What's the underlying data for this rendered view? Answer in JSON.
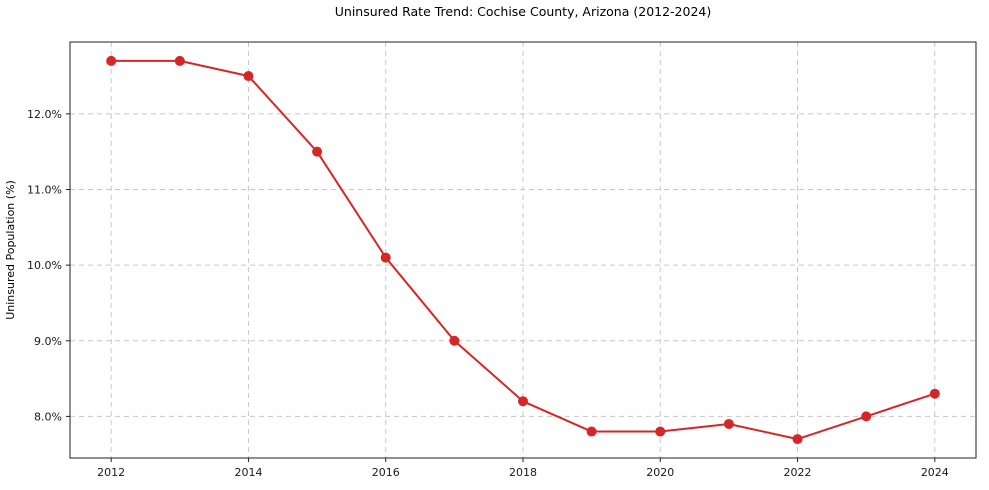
{
  "chart_data": {
    "type": "line",
    "title": "Uninsured Rate Trend: Cochise County, Arizona (2012-2024)",
    "xlabel": "",
    "ylabel": "Uninsured Population (%)",
    "x": [
      2012,
      2013,
      2014,
      2015,
      2016,
      2017,
      2018,
      2019,
      2020,
      2021,
      2022,
      2023,
      2024
    ],
    "y": [
      12.7,
      12.7,
      12.5,
      11.5,
      10.1,
      9.0,
      8.2,
      7.8,
      7.8,
      7.9,
      7.7,
      8.0,
      8.3
    ],
    "x_ticks": [
      2012,
      2014,
      2016,
      2018,
      2020,
      2022,
      2024
    ],
    "y_ticks": [
      8.0,
      9.0,
      10.0,
      11.0,
      12.0
    ],
    "y_tick_suffix": "%",
    "xlim": [
      2011.4,
      2024.6
    ],
    "ylim": [
      7.45,
      12.95
    ],
    "grid": true,
    "legend": "none",
    "line_color": "#d62728",
    "marker": "circle",
    "marker_radius": 5,
    "line_width": 2
  }
}
